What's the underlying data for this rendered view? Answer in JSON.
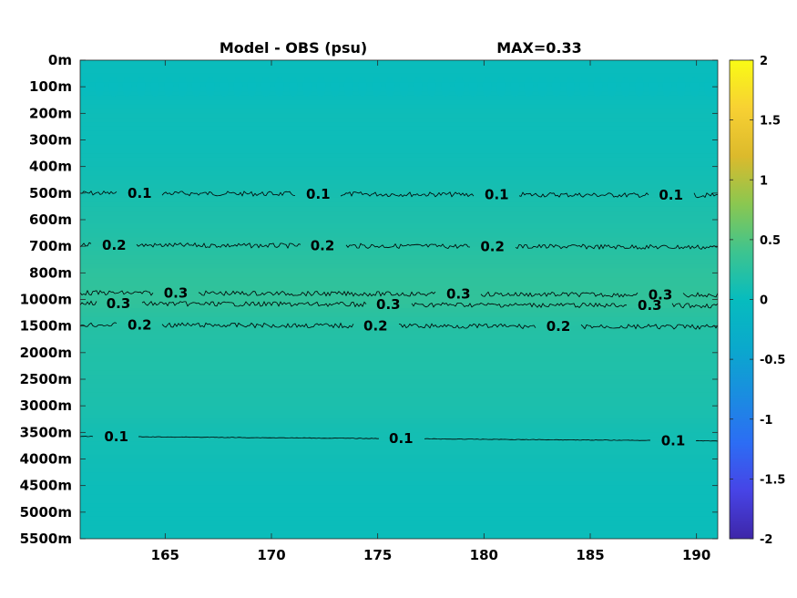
{
  "chart_data": {
    "type": "heatmap",
    "title": "Model - OBS (psu)",
    "subtitle": "MAX=0.33",
    "x_ticks": [
      "165",
      "170",
      "175",
      "180",
      "185",
      "190"
    ],
    "x_tick_values": [
      165,
      170,
      175,
      180,
      185,
      190
    ],
    "xlim": [
      161,
      191
    ],
    "y_ticks": [
      "0m",
      "100m",
      "200m",
      "300m",
      "400m",
      "500m",
      "600m",
      "700m",
      "800m",
      "1000m",
      "1500m",
      "2000m",
      "2500m",
      "3000m",
      "3500m",
      "4000m",
      "4500m",
      "5000m",
      "5500m"
    ],
    "colorbar": {
      "ticks": [
        "2",
        "1.5",
        "1",
        "0.5",
        "0",
        "-0.5",
        "-1",
        "-1.5",
        "-2"
      ],
      "tick_values": [
        2,
        1.5,
        1,
        0.5,
        0,
        -0.5,
        -1,
        -1.5,
        -2
      ],
      "range": [
        -2,
        2
      ],
      "colormap": "parula"
    },
    "depth_profile": [
      {
        "depth": "0m",
        "value": 0.02
      },
      {
        "depth": "100m",
        "value": 0.0
      },
      {
        "depth": "200m",
        "value": 0.05
      },
      {
        "depth": "300m",
        "value": 0.04
      },
      {
        "depth": "400m",
        "value": 0.07
      },
      {
        "depth": "500m",
        "value": 0.12
      },
      {
        "depth": "600m",
        "value": 0.17
      },
      {
        "depth": "700m",
        "value": 0.22
      },
      {
        "depth": "800m",
        "value": 0.28
      },
      {
        "depth": "1000m",
        "value": 0.31
      },
      {
        "depth": "1500m",
        "value": 0.22
      },
      {
        "depth": "2000m",
        "value": 0.19
      },
      {
        "depth": "2500m",
        "value": 0.17
      },
      {
        "depth": "3000m",
        "value": 0.15
      },
      {
        "depth": "3500m",
        "value": 0.1
      },
      {
        "depth": "4000m",
        "value": 0.07
      },
      {
        "depth": "4500m",
        "value": 0.04
      },
      {
        "depth": "5000m",
        "value": 0.03
      },
      {
        "depth": "5500m",
        "value": 0.03
      }
    ],
    "contours": [
      {
        "level": "0.1",
        "depth_index": 5.0,
        "noisy": true,
        "label_x": [
          163.8,
          172.2,
          180.6,
          188.8
        ]
      },
      {
        "level": "0.2",
        "depth_index": 6.95,
        "noisy": true,
        "label_x": [
          162.6,
          172.4,
          180.4
        ]
      },
      {
        "level": "0.3",
        "depth_index": 8.75,
        "noisy": true,
        "label_x": [
          165.5,
          178.8,
          188.3
        ]
      },
      {
        "level": "0.3",
        "depth_index": 9.15,
        "noisy": true,
        "label_x": [
          162.8,
          175.5,
          187.8
        ]
      },
      {
        "level": "0.2",
        "depth_index": 9.95,
        "noisy": true,
        "label_x": [
          163.8,
          174.9,
          183.5
        ]
      },
      {
        "level": "0.1",
        "depth_index": 14.15,
        "noisy": false,
        "label_x": [
          162.7,
          176.1,
          188.9
        ]
      }
    ]
  }
}
